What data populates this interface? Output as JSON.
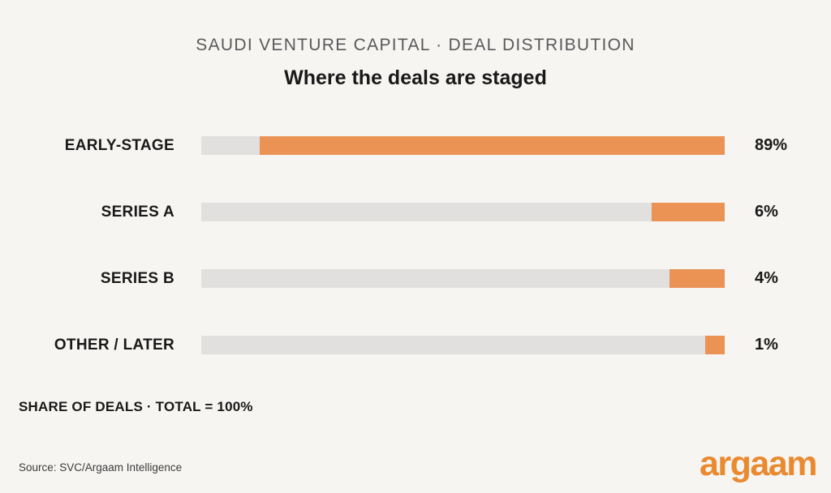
{
  "header": {
    "eyebrow": "SAUDI VENTURE CAPITAL · DEAL DISTRIBUTION",
    "title": "Where the deals are staged"
  },
  "chart_data": {
    "type": "bar",
    "orientation": "horizontal",
    "title": "Where the deals are staged",
    "subtitle": "SAUDI VENTURE CAPITAL · DEAL DISTRIBUTION",
    "categories": [
      "EARLY-STAGE",
      "SERIES A",
      "SERIES B",
      "OTHER / LATER"
    ],
    "values": [
      89,
      6,
      4,
      1
    ],
    "value_labels": [
      "89%",
      "6%",
      "4%",
      "1%"
    ],
    "unit": "%",
    "xlim": [
      0,
      100
    ],
    "note": "SHARE OF DEALS · TOTAL = 100%",
    "layout_hints": {
      "fill_alignment": "right",
      "display_fill_pct": [
        88.8,
        13.9,
        10.5,
        3.7
      ],
      "grid": false,
      "legend": false
    },
    "colors": {
      "background": "#F7F5F2",
      "track": "#E2E0DE",
      "fill": "#EB9255",
      "ink": "#191919",
      "subtitle_text": "#58595B",
      "logo": "#E98A31"
    }
  },
  "footer": {
    "note": "SHARE OF DEALS · TOTAL = 100%",
    "source": "Source: SVC/Argaam Intelligence",
    "logo": "argaam"
  }
}
